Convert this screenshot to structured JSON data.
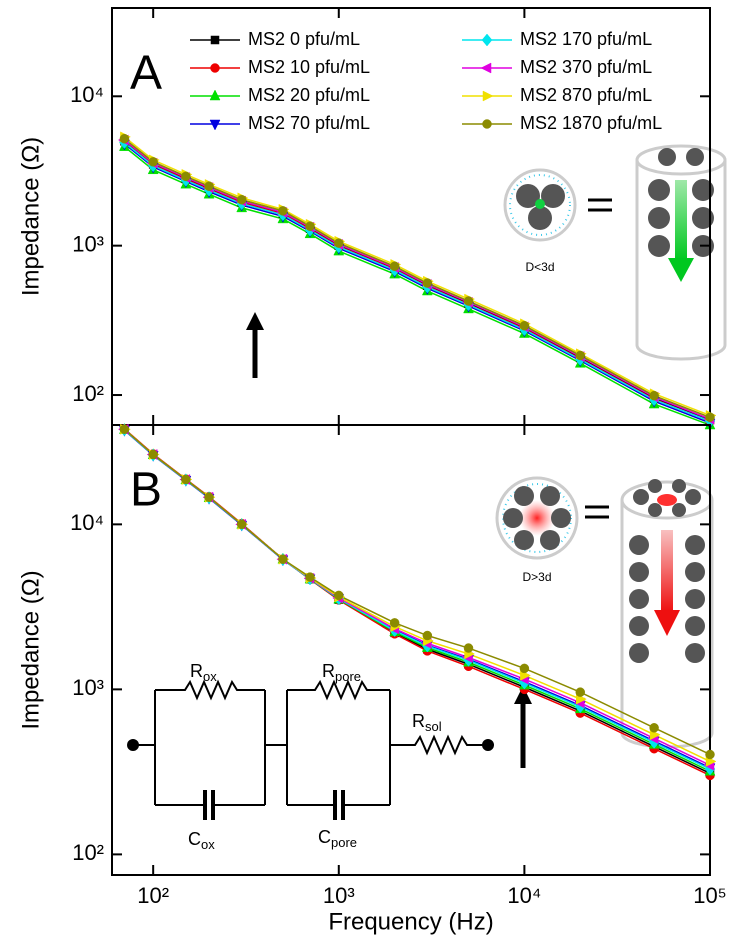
{
  "chart_data": [
    {
      "type": "line",
      "label": "A",
      "ylabel": "Impedance (Ω)",
      "xscale": "log",
      "yscale": "log",
      "xlim": [
        60,
        100000
      ],
      "ylim": [
        63,
        39000
      ],
      "xticks": [
        100,
        1000,
        10000,
        100000
      ],
      "yticks": [
        {
          "value": 100,
          "label": "10²"
        },
        {
          "value": 1000,
          "label": "10³"
        },
        {
          "value": 10000,
          "label": "10⁴"
        }
      ],
      "x": [
        70,
        100,
        150,
        200,
        300,
        500,
        700,
        1000,
        2000,
        3000,
        5000,
        10000,
        20000,
        50000,
        100000
      ],
      "series": [
        {
          "name": "MS2 0 pfu/mL",
          "color": "#000000",
          "marker": "square",
          "values": [
            5000,
            3500,
            2800,
            2400,
            1950,
            1640,
            1300,
            1000,
            700,
            540,
            410,
            280,
            177,
            95,
            68
          ]
        },
        {
          "name": "MS2 10 pfu/mL",
          "color": "#ee0000",
          "marker": "circle",
          "values": [
            4950,
            3480,
            2780,
            2380,
            1940,
            1630,
            1290,
            990,
            695,
            535,
            405,
            278,
            175,
            94,
            67
          ]
        },
        {
          "name": "MS2 20 pfu/mL",
          "color": "#00e000",
          "marker": "triangle-up",
          "values": [
            4600,
            3220,
            2580,
            2210,
            1790,
            1510,
            1200,
            920,
            645,
            497,
            377,
            258,
            163,
            87,
            63
          ]
        },
        {
          "name": "MS2 70 pfu/mL",
          "color": "#0000e0",
          "marker": "triangle-down",
          "values": [
            4800,
            3360,
            2690,
            2300,
            1870,
            1570,
            1250,
            960,
            672,
            518,
            394,
            269,
            170,
            91,
            65
          ]
        },
        {
          "name": "MS2 170 pfu/mL",
          "color": "#00e5ee",
          "marker": "diamond",
          "values": [
            4900,
            3430,
            2740,
            2350,
            1910,
            1610,
            1270,
            980,
            686,
            529,
            402,
            274,
            173,
            93,
            67
          ]
        },
        {
          "name": "MS2 370 pfu/mL",
          "color": "#e000e0",
          "marker": "triangle-left",
          "values": [
            5100,
            3570,
            2860,
            2450,
            1990,
            1670,
            1330,
            1020,
            714,
            551,
            418,
            286,
            181,
            97,
            69
          ]
        },
        {
          "name": "MS2 870 pfu/mL",
          "color": "#f0e000",
          "marker": "triangle-right",
          "values": [
            5350,
            3750,
            3000,
            2570,
            2090,
            1750,
            1390,
            1070,
            749,
            578,
            439,
            300,
            189,
            102,
            73
          ]
        },
        {
          "name": "MS2 1870 pfu/mL",
          "color": "#8b8b00",
          "marker": "circle",
          "values": [
            5200,
            3640,
            2910,
            2500,
            2030,
            1710,
            1350,
            1040,
            728,
            562,
            426,
            291,
            184,
            99,
            71
          ]
        }
      ],
      "annotations": {
        "inset": "D<3d"
      }
    },
    {
      "type": "line",
      "label": "B",
      "ylabel": "Impedance (Ω)",
      "xlabel": "Frequency (Hz)",
      "xscale": "log",
      "yscale": "log",
      "xlim": [
        60,
        100000
      ],
      "ylim": [
        75,
        40000
      ],
      "xticks": [
        {
          "value": 100,
          "label": "10²"
        },
        {
          "value": 1000,
          "label": "10³"
        },
        {
          "value": 10000,
          "label": "10⁴"
        },
        {
          "value": 100000,
          "label": "10⁵"
        }
      ],
      "yticks": [
        {
          "value": 100,
          "label": "10²"
        },
        {
          "value": 1000,
          "label": "10³"
        },
        {
          "value": 10000,
          "label": "10⁴"
        }
      ],
      "x": [
        70,
        100,
        150,
        200,
        300,
        500,
        700,
        1000,
        2000,
        3000,
        5000,
        10000,
        20000,
        50000,
        100000
      ],
      "series": [
        {
          "color": "#000000",
          "marker": "square",
          "values": [
            37700,
            26500,
            18700,
            14600,
            10000,
            6150,
            4650,
            3500,
            2200,
            1750,
            1420,
            1030,
            740,
            450,
            310
          ]
        },
        {
          "color": "#ee0000",
          "marker": "circle",
          "values": [
            37900,
            26700,
            18800,
            14700,
            10100,
            6150,
            4640,
            3480,
            2170,
            1710,
            1380,
            1000,
            718,
            437,
            301
          ]
        },
        {
          "color": "#00e000",
          "marker": "triangle-up",
          "values": [
            37500,
            26400,
            18600,
            14500,
            10000,
            6150,
            4660,
            3520,
            2230,
            1790,
            1460,
            1061,
            762,
            464,
            319
          ]
        },
        {
          "color": "#0000e0",
          "marker": "triangle-down",
          "values": [
            37200,
            26200,
            18500,
            14400,
            9900,
            6100,
            4680,
            3550,
            2290,
            1850,
            1520,
            1112,
            799,
            486,
            335
          ]
        },
        {
          "color": "#00e5ee",
          "marker": "diamond",
          "values": [
            37400,
            26300,
            18600,
            14500,
            9950,
            6120,
            4670,
            3540,
            2270,
            1830,
            1500,
            1092,
            784,
            477,
            329
          ]
        },
        {
          "color": "#e000e0",
          "marker": "triangle-left",
          "values": [
            37700,
            26500,
            18700,
            14600,
            10000,
            6150,
            4710,
            3580,
            2330,
            1900,
            1560,
            1154,
            829,
            504,
            347
          ]
        },
        {
          "color": "#f0e000",
          "marker": "triangle-right",
          "values": [
            37700,
            26500,
            18700,
            14600,
            10000,
            6150,
            4730,
            3630,
            2400,
            1970,
            1640,
            1215,
            873,
            531,
            366
          ]
        },
        {
          "color": "#8b8b00",
          "marker": "circle",
          "values": [
            37700,
            26500,
            18700,
            14600,
            10000,
            6150,
            4790,
            3710,
            2530,
            2120,
            1780,
            1340,
            962,
            585,
            403
          ]
        }
      ],
      "annotations": {
        "inset": "D>3d",
        "circuit": [
          {
            "main": "R",
            "sub": "ox"
          },
          {
            "main": "C",
            "sub": "ox"
          },
          {
            "main": "R",
            "sub": "pore"
          },
          {
            "main": "C",
            "sub": "pore"
          },
          {
            "main": "R",
            "sub": "sol"
          }
        ]
      }
    }
  ]
}
